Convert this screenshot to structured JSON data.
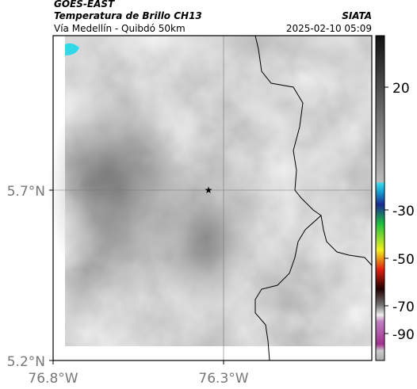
{
  "header": {
    "title": "GOES-EAST",
    "subtitle": "Temperatura de Brillo CH13",
    "route": "Vía Medellín - Quibdó 50km",
    "source": "SIATA",
    "datetime": "2025-02-10 05:09"
  },
  "axes": {
    "y_labels": [
      "5.7°N",
      "5.2°N"
    ],
    "x_labels": [
      "76.8°W",
      "76.3°W"
    ]
  },
  "colorbar": {
    "ticks": [
      "20",
      "-30",
      "-50",
      "-70",
      "-90"
    ]
  }
}
